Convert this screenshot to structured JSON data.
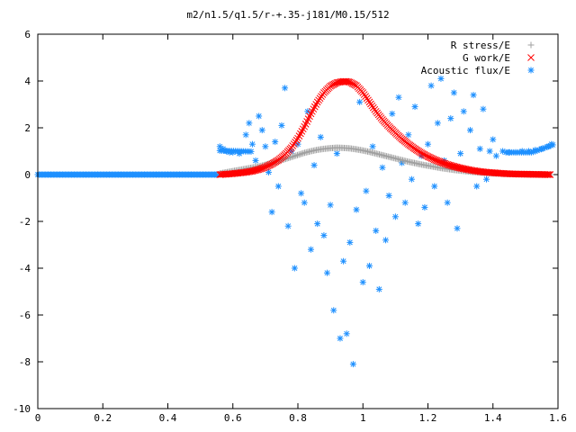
{
  "chart_data": {
    "type": "scatter",
    "title": "m2/n1.5/q1.5/r-+.35-j181/M0.15/512",
    "xlabel": "",
    "ylabel": "",
    "xlim": [
      0,
      1.6
    ],
    "ylim": [
      -10,
      6
    ],
    "x_ticks": [
      "0",
      "0.2",
      "0.4",
      "0.6",
      "0.8",
      "1",
      "1.2",
      "1.4",
      "1.6"
    ],
    "y_ticks": [
      "6",
      "4",
      "2",
      "0",
      "-2",
      "-4",
      "-6",
      "-8",
      "-10"
    ],
    "grid": false,
    "legend_position": "top-right",
    "series": [
      {
        "name": "R stress/E",
        "marker": "+",
        "color": "#a0a0a0",
        "x": [
          0.56,
          0.58,
          0.6,
          0.62,
          0.64,
          0.66,
          0.68,
          0.7,
          0.72,
          0.74,
          0.76,
          0.78,
          0.8,
          0.82,
          0.84,
          0.86,
          0.88,
          0.9,
          0.92,
          0.94,
          0.96,
          0.98,
          1.0,
          1.02,
          1.04,
          1.06,
          1.08,
          1.1,
          1.12,
          1.14,
          1.16,
          1.18,
          1.2,
          1.22,
          1.24,
          1.26,
          1.28,
          1.3,
          1.32,
          1.34,
          1.36,
          1.38,
          1.4,
          1.42,
          1.44,
          1.46,
          1.48,
          1.5,
          1.52,
          1.54,
          1.56,
          1.58
        ],
        "y": [
          0.05,
          0.1,
          0.15,
          0.2,
          0.25,
          0.3,
          0.35,
          0.42,
          0.5,
          0.58,
          0.66,
          0.75,
          0.84,
          0.93,
          1.0,
          1.06,
          1.1,
          1.13,
          1.15,
          1.14,
          1.12,
          1.08,
          1.03,
          0.97,
          0.9,
          0.83,
          0.76,
          0.69,
          0.62,
          0.55,
          0.49,
          0.43,
          0.38,
          0.33,
          0.28,
          0.24,
          0.2,
          0.17,
          0.14,
          0.11,
          0.09,
          0.07,
          0.05,
          0.04,
          0.03,
          0.02,
          0.02,
          0.01,
          0.01,
          0.01,
          0.0,
          0.0
        ]
      },
      {
        "name": "G work/E",
        "marker": "x",
        "color": "#ff0000",
        "x": [
          0.56,
          0.58,
          0.6,
          0.62,
          0.64,
          0.66,
          0.68,
          0.7,
          0.72,
          0.74,
          0.76,
          0.78,
          0.8,
          0.82,
          0.84,
          0.86,
          0.88,
          0.9,
          0.92,
          0.94,
          0.95,
          0.96,
          0.98,
          1.0,
          1.02,
          1.04,
          1.06,
          1.08,
          1.1,
          1.12,
          1.14,
          1.16,
          1.18,
          1.2,
          1.22,
          1.24,
          1.26,
          1.28,
          1.3,
          1.32,
          1.34,
          1.36,
          1.38,
          1.4,
          1.42,
          1.44,
          1.46,
          1.48,
          1.5,
          1.52,
          1.54,
          1.56,
          1.58
        ],
        "y": [
          0.0,
          0.02,
          0.04,
          0.07,
          0.1,
          0.15,
          0.22,
          0.32,
          0.45,
          0.62,
          0.85,
          1.15,
          1.55,
          2.05,
          2.6,
          3.1,
          3.5,
          3.78,
          3.93,
          3.98,
          3.98,
          3.95,
          3.8,
          3.5,
          3.1,
          2.7,
          2.35,
          2.05,
          1.78,
          1.52,
          1.3,
          1.1,
          0.92,
          0.77,
          0.64,
          0.53,
          0.43,
          0.35,
          0.28,
          0.22,
          0.17,
          0.13,
          0.1,
          0.08,
          0.06,
          0.04,
          0.03,
          0.02,
          0.02,
          0.01,
          0.01,
          0.0,
          0.0
        ]
      },
      {
        "name": "Acoustic flux/E",
        "marker": "*",
        "color": "#1e90ff",
        "x": [
          0.0,
          0.03,
          0.06,
          0.09,
          0.12,
          0.15,
          0.18,
          0.21,
          0.24,
          0.27,
          0.3,
          0.33,
          0.36,
          0.39,
          0.42,
          0.45,
          0.48,
          0.51,
          0.54,
          0.56,
          0.57,
          0.58,
          0.59,
          0.6,
          0.62,
          0.64,
          0.65,
          0.66,
          0.67,
          0.68,
          0.69,
          0.7,
          0.71,
          0.72,
          0.73,
          0.74,
          0.75,
          0.76,
          0.77,
          0.78,
          0.79,
          0.8,
          0.81,
          0.82,
          0.83,
          0.84,
          0.85,
          0.86,
          0.87,
          0.88,
          0.89,
          0.9,
          0.91,
          0.92,
          0.93,
          0.94,
          0.95,
          0.96,
          0.97,
          0.98,
          0.99,
          1.0,
          1.01,
          1.02,
          1.03,
          1.04,
          1.05,
          1.06,
          1.07,
          1.08,
          1.09,
          1.1,
          1.11,
          1.12,
          1.13,
          1.14,
          1.15,
          1.16,
          1.17,
          1.18,
          1.19,
          1.2,
          1.21,
          1.22,
          1.23,
          1.24,
          1.25,
          1.26,
          1.27,
          1.28,
          1.29,
          1.3,
          1.31,
          1.32,
          1.33,
          1.34,
          1.35,
          1.36,
          1.37,
          1.38,
          1.39,
          1.4,
          1.41,
          1.43,
          1.45,
          1.47,
          1.49,
          1.51,
          1.53,
          1.55,
          1.57,
          1.58
        ],
        "y": [
          0.0,
          0.0,
          0.0,
          0.0,
          0.0,
          0.0,
          0.0,
          0.0,
          0.0,
          0.0,
          0.0,
          0.0,
          0.0,
          0.0,
          0.0,
          0.0,
          0.0,
          0.0,
          0.0,
          1.2,
          1.1,
          1.0,
          0.95,
          0.95,
          0.9,
          1.7,
          2.2,
          1.3,
          0.6,
          2.5,
          1.9,
          1.2,
          0.1,
          -1.6,
          1.4,
          -0.5,
          2.1,
          3.7,
          -2.2,
          1.0,
          -4.0,
          1.3,
          -0.8,
          -1.2,
          2.7,
          -3.2,
          0.4,
          -2.1,
          1.6,
          -2.6,
          -4.2,
          -1.3,
          -5.8,
          0.9,
          -7.0,
          -3.7,
          -6.8,
          -2.9,
          -8.1,
          -1.5,
          3.1,
          -4.6,
          -0.7,
          -3.9,
          1.2,
          -2.4,
          -4.9,
          0.3,
          -2.8,
          -0.9,
          2.6,
          -1.8,
          3.3,
          0.5,
          -1.2,
          1.7,
          -0.2,
          2.9,
          -2.1,
          0.8,
          -1.4,
          1.3,
          3.8,
          -0.5,
          2.2,
          4.1,
          0.6,
          -1.2,
          2.4,
          3.5,
          -2.3,
          0.9,
          2.7,
          0.2,
          1.9,
          3.4,
          -0.5,
          1.1,
          2.8,
          -0.2,
          1.0,
          1.5,
          0.8,
          1.0,
          0.95,
          0.95,
          1.0,
          1.0,
          1.05,
          1.1,
          1.2,
          1.3
        ]
      }
    ]
  }
}
